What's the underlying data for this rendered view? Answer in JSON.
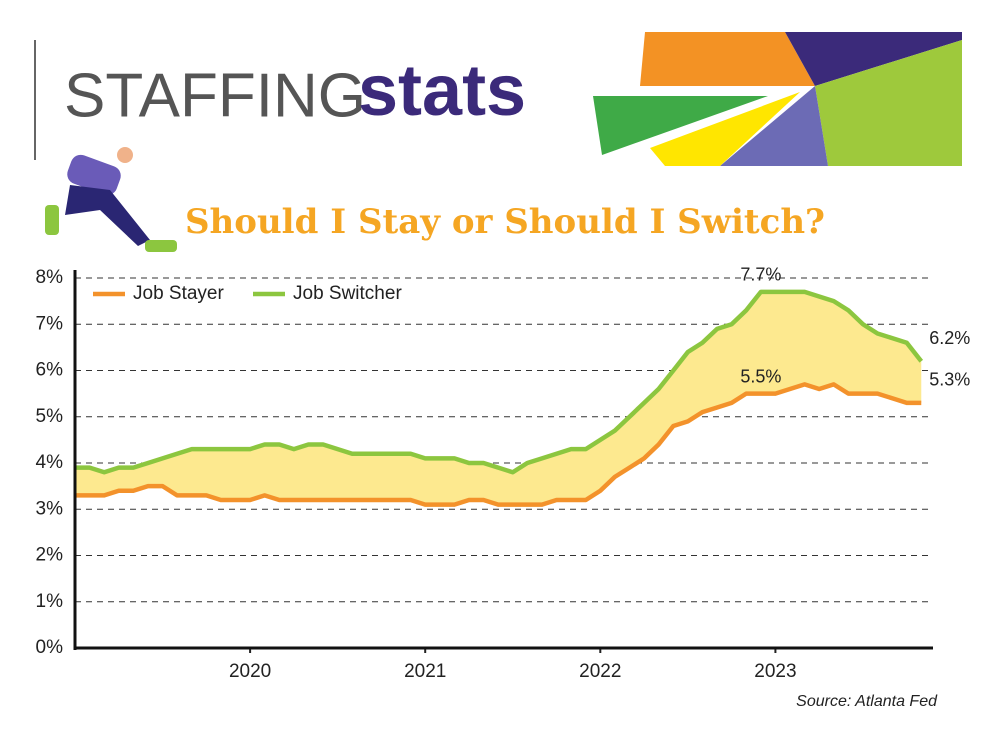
{
  "header": {
    "word1": "STAFFING",
    "word2": "stats"
  },
  "chart_data": {
    "type": "line",
    "title": "Should I Stay or Should I Switch?",
    "source": "Source: Atlanta Fed",
    "x": [
      2019,
      2019.083,
      2019.167,
      2019.25,
      2019.333,
      2019.417,
      2019.5,
      2019.583,
      2019.667,
      2019.75,
      2019.833,
      2019.917,
      2020,
      2020.083,
      2020.167,
      2020.25,
      2020.333,
      2020.417,
      2020.5,
      2020.583,
      2020.667,
      2020.75,
      2020.833,
      2020.917,
      2021,
      2021.083,
      2021.167,
      2021.25,
      2021.333,
      2021.417,
      2021.5,
      2021.583,
      2021.667,
      2021.75,
      2021.833,
      2021.917,
      2022,
      2022.083,
      2022.167,
      2022.25,
      2022.333,
      2022.417,
      2022.5,
      2022.583,
      2022.667,
      2022.75,
      2022.833,
      2022.917,
      2023,
      2023.083,
      2023.167,
      2023.25,
      2023.333,
      2023.417,
      2023.5,
      2023.583,
      2023.667,
      2023.75,
      2023.833
    ],
    "series": [
      {
        "name": "Job Stayer",
        "color": "#f3922b",
        "values": [
          3.3,
          3.3,
          3.3,
          3.4,
          3.4,
          3.5,
          3.5,
          3.3,
          3.3,
          3.3,
          3.2,
          3.2,
          3.2,
          3.3,
          3.2,
          3.2,
          3.2,
          3.2,
          3.2,
          3.2,
          3.2,
          3.2,
          3.2,
          3.2,
          3.1,
          3.1,
          3.1,
          3.2,
          3.2,
          3.1,
          3.1,
          3.1,
          3.1,
          3.2,
          3.2,
          3.2,
          3.4,
          3.7,
          3.9,
          4.1,
          4.4,
          4.8,
          4.9,
          5.1,
          5.2,
          5.3,
          5.5,
          5.5,
          5.5,
          5.6,
          5.7,
          5.6,
          5.7,
          5.5,
          5.5,
          5.5,
          5.4,
          5.3,
          5.3
        ]
      },
      {
        "name": "Job Switcher",
        "color": "#8cc63f",
        "values": [
          3.9,
          3.9,
          3.8,
          3.9,
          3.9,
          4.0,
          4.1,
          4.2,
          4.3,
          4.3,
          4.3,
          4.3,
          4.3,
          4.4,
          4.4,
          4.3,
          4.4,
          4.4,
          4.3,
          4.2,
          4.2,
          4.2,
          4.2,
          4.2,
          4.1,
          4.1,
          4.1,
          4.0,
          4.0,
          3.9,
          3.8,
          4.0,
          4.1,
          4.2,
          4.3,
          4.3,
          4.5,
          4.7,
          5.0,
          5.3,
          5.6,
          6.0,
          6.4,
          6.6,
          6.9,
          7.0,
          7.3,
          7.7,
          7.7,
          7.7,
          7.7,
          7.6,
          7.5,
          7.3,
          7.0,
          6.8,
          6.7,
          6.6,
          6.2
        ]
      }
    ],
    "fill_between": "#fde98f",
    "annotations": [
      {
        "text": "7.7%",
        "x": 2022.917,
        "y": 7.7
      },
      {
        "text": "5.5%",
        "x": 2022.917,
        "y": 5.5
      },
      {
        "text": "6.2%",
        "x": 2023.833,
        "y": 6.2
      },
      {
        "text": "5.3%",
        "x": 2023.833,
        "y": 5.3
      }
    ],
    "xlim": [
      2019,
      2023.9
    ],
    "xticks": [
      2020,
      2021,
      2022,
      2023
    ],
    "ylim": [
      0,
      8
    ],
    "yticks": [
      {
        "value": 0,
        "label": "0%"
      },
      {
        "value": 1,
        "label": "1%"
      },
      {
        "value": 2,
        "label": "2%"
      },
      {
        "value": 3,
        "label": "3%"
      },
      {
        "value": 4,
        "label": "4%"
      },
      {
        "value": 5,
        "label": "5%"
      },
      {
        "value": 6,
        "label": "6%"
      },
      {
        "value": 7,
        "label": "7%"
      },
      {
        "value": 8,
        "label": "8%"
      }
    ],
    "grid": true,
    "legend": "top-left"
  }
}
